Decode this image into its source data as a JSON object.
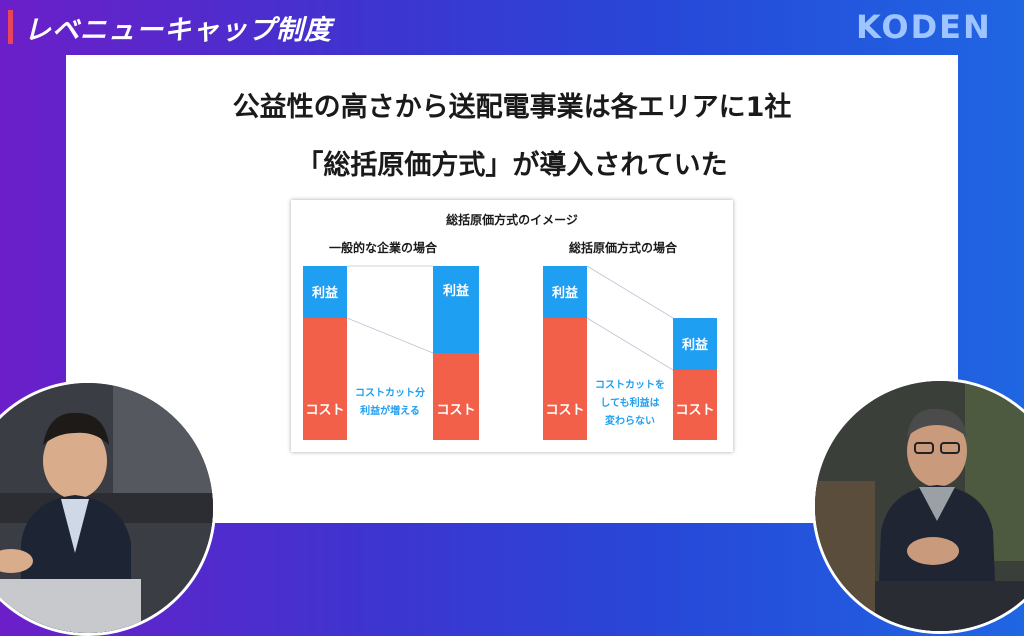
{
  "header": {
    "title": "レベニューキャップ制度",
    "logo": "KODEN"
  },
  "slide": {
    "headline_1": "公益性の高さから送配電事業は各エリアに1社",
    "headline_2": "「総括原価方式」が導入されていた"
  },
  "diagram": {
    "title": "総括原価方式のイメージ",
    "left_section": {
      "caption": "一般的な企業の場合",
      "bar1": {
        "profit": "利益",
        "cost": "コスト"
      },
      "bar2": {
        "profit": "利益",
        "cost": "コスト"
      },
      "note_line1": "コストカット分",
      "note_line2": "利益が増える"
    },
    "right_section": {
      "caption": "総括原価方式の場合",
      "bar1": {
        "profit": "利益",
        "cost": "コスト"
      },
      "bar2": {
        "profit": "利益",
        "cost": "コスト"
      },
      "note_line1": "コストカットを",
      "note_line2": "しても利益は",
      "note_line3": "変わらない"
    }
  },
  "colors": {
    "profit": "#1f9ff2",
    "cost": "#f2604a",
    "note": "#1f9ff2",
    "accent": "#e6455b"
  },
  "video": {
    "left_participant": "speaker-left",
    "right_participant": "speaker-right"
  }
}
